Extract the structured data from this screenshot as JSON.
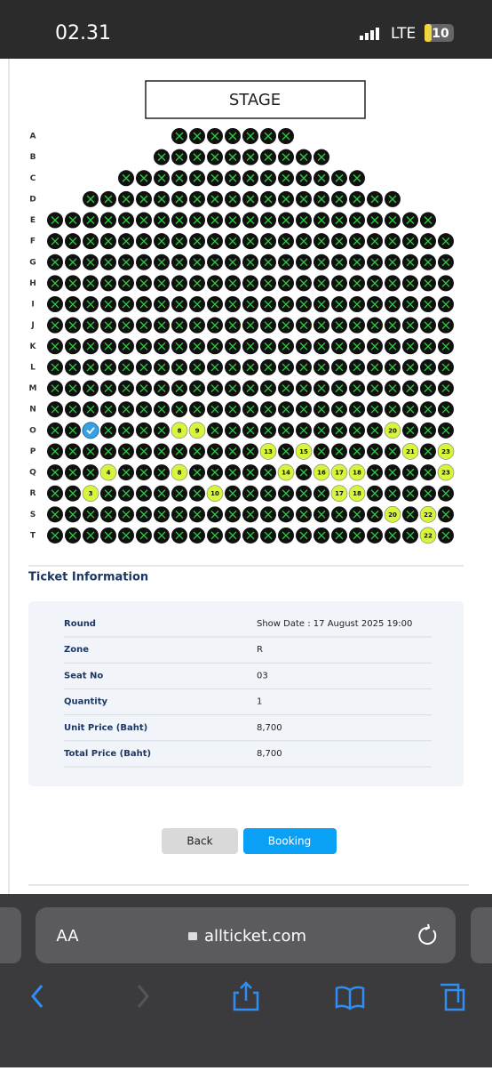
{
  "status_bar": {
    "time": "02.31",
    "network": "LTE",
    "battery": "10"
  },
  "seat_map": {
    "stage": "STAGE",
    "selected": {
      "row": 14,
      "seat": 2
    },
    "rows": [
      {
        "label": "A",
        "seats": [
          null,
          null,
          null,
          null,
          null,
          null,
          null
        ]
      },
      {
        "label": "B",
        "seats": [
          null,
          null,
          null,
          null,
          null,
          null,
          null,
          null,
          null,
          null
        ]
      },
      {
        "label": "C",
        "seats": [
          null,
          null,
          null,
          null,
          null,
          null,
          null,
          null,
          null,
          null,
          null,
          null,
          null,
          null
        ]
      },
      {
        "label": "D",
        "seats": [
          null,
          null,
          null,
          null,
          null,
          null,
          null,
          null,
          null,
          null,
          null,
          null,
          null,
          null,
          null,
          null,
          null,
          null
        ]
      },
      {
        "label": "E",
        "seats": [
          null,
          null,
          null,
          null,
          null,
          null,
          null,
          null,
          null,
          null,
          null,
          null,
          null,
          null,
          null,
          null,
          null,
          null,
          null,
          null,
          null,
          null
        ]
      },
      {
        "label": "F",
        "seats": [
          null,
          null,
          null,
          null,
          null,
          null,
          null,
          null,
          null,
          null,
          null,
          null,
          null,
          null,
          null,
          null,
          null,
          null,
          null,
          null,
          null,
          null,
          null
        ]
      },
      {
        "label": "G",
        "seats": [
          null,
          null,
          null,
          null,
          null,
          null,
          null,
          null,
          null,
          null,
          null,
          null,
          null,
          null,
          null,
          null,
          null,
          null,
          null,
          null,
          null,
          null,
          null
        ]
      },
      {
        "label": "H",
        "seats": [
          null,
          null,
          null,
          null,
          null,
          null,
          null,
          null,
          null,
          null,
          null,
          null,
          null,
          null,
          null,
          null,
          null,
          null,
          null,
          null,
          null,
          null,
          null
        ]
      },
      {
        "label": "I",
        "seats": [
          null,
          null,
          null,
          null,
          null,
          null,
          null,
          null,
          null,
          null,
          null,
          null,
          null,
          null,
          null,
          null,
          null,
          null,
          null,
          null,
          null,
          null,
          null
        ]
      },
      {
        "label": "J",
        "seats": [
          null,
          null,
          null,
          null,
          null,
          null,
          null,
          null,
          null,
          null,
          null,
          null,
          null,
          null,
          null,
          null,
          null,
          null,
          null,
          null,
          null,
          null,
          null
        ]
      },
      {
        "label": "K",
        "seats": [
          null,
          null,
          null,
          null,
          null,
          null,
          null,
          null,
          null,
          null,
          null,
          null,
          null,
          null,
          null,
          null,
          null,
          null,
          null,
          null,
          null,
          null,
          null
        ]
      },
      {
        "label": "L",
        "seats": [
          null,
          null,
          null,
          null,
          null,
          null,
          null,
          null,
          null,
          null,
          null,
          null,
          null,
          null,
          null,
          null,
          null,
          null,
          null,
          null,
          null,
          null,
          null
        ]
      },
      {
        "label": "M",
        "seats": [
          null,
          null,
          null,
          null,
          null,
          null,
          null,
          null,
          null,
          null,
          null,
          null,
          null,
          null,
          null,
          null,
          null,
          null,
          null,
          null,
          null,
          null,
          null
        ]
      },
      {
        "label": "N",
        "seats": [
          null,
          null,
          null,
          null,
          null,
          null,
          null,
          null,
          null,
          null,
          null,
          null,
          null,
          null,
          null,
          null,
          null,
          null,
          null,
          null,
          null,
          null,
          null
        ]
      },
      {
        "label": "O",
        "seats": [
          null,
          null,
          null,
          null,
          null,
          null,
          null,
          8,
          9,
          null,
          null,
          null,
          null,
          null,
          null,
          null,
          null,
          null,
          null,
          20,
          null,
          null,
          null
        ]
      },
      {
        "label": "P",
        "seats": [
          null,
          null,
          null,
          null,
          null,
          null,
          null,
          null,
          null,
          null,
          null,
          null,
          13,
          null,
          15,
          null,
          null,
          null,
          null,
          null,
          21,
          null,
          23
        ]
      },
      {
        "label": "Q",
        "seats": [
          null,
          null,
          null,
          4,
          null,
          null,
          null,
          8,
          null,
          null,
          null,
          null,
          null,
          14,
          null,
          16,
          17,
          18,
          null,
          null,
          null,
          null,
          23
        ]
      },
      {
        "label": "R",
        "seats": [
          null,
          null,
          3,
          null,
          null,
          null,
          null,
          null,
          null,
          10,
          null,
          null,
          null,
          null,
          null,
          null,
          17,
          18,
          null,
          null,
          null,
          null,
          null
        ]
      },
      {
        "label": "S",
        "seats": [
          null,
          null,
          null,
          null,
          null,
          null,
          null,
          null,
          null,
          null,
          null,
          null,
          null,
          null,
          null,
          null,
          null,
          null,
          null,
          20,
          null,
          22,
          null
        ]
      },
      {
        "label": "T",
        "seats": [
          null,
          null,
          null,
          null,
          null,
          null,
          null,
          null,
          null,
          null,
          null,
          null,
          null,
          null,
          null,
          null,
          null,
          null,
          null,
          null,
          null,
          22,
          null
        ]
      }
    ]
  },
  "ticket_info": {
    "title": "Ticket Information",
    "rows": [
      [
        "Round",
        "Show Date : 17 August 2025 19:00"
      ],
      [
        "Zone",
        "R"
      ],
      [
        "Seat No",
        "03"
      ],
      [
        "Quantity",
        "1"
      ],
      [
        "Unit Price (Baht)",
        "8,700"
      ],
      [
        "Total Price (Baht)",
        "8,700"
      ]
    ]
  },
  "buttons": {
    "back": "Back",
    "booking": "Booking"
  },
  "browser": {
    "text_size": "AA",
    "url": "allticket.com"
  }
}
